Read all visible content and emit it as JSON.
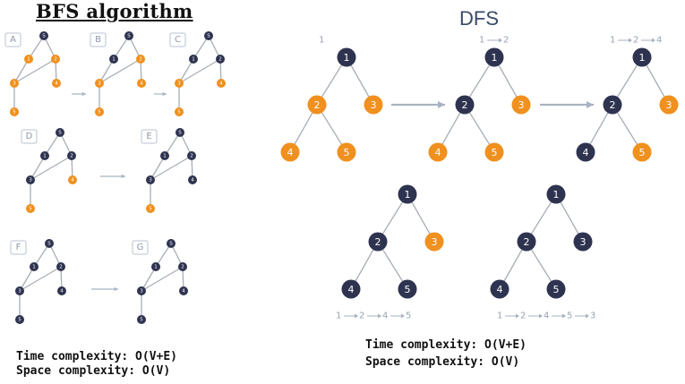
{
  "bfs": {
    "title": "BFS algorithm",
    "time_complexity": "Time complexity: O(V+E)",
    "space_complexity": "Space complexity: O(V)",
    "panels": [
      {
        "label": "A",
        "visited": [],
        "frontier": [
          1,
          2,
          3,
          4,
          5
        ]
      },
      {
        "label": "B",
        "visited": [
          1
        ],
        "frontier": [
          2,
          3,
          4,
          5
        ]
      },
      {
        "label": "C",
        "visited": [
          1,
          2
        ],
        "frontier": [
          3,
          4,
          5
        ]
      },
      {
        "label": "D",
        "visited": [
          1,
          2,
          3
        ],
        "frontier": [
          4,
          5
        ]
      },
      {
        "label": "E",
        "visited": [
          1,
          2,
          3,
          4
        ],
        "frontier": [
          5
        ]
      },
      {
        "label": "F",
        "visited": [
          1,
          2,
          3,
          4,
          5
        ],
        "frontier": []
      },
      {
        "label": "G",
        "visited": [
          1,
          2,
          3,
          4,
          5
        ],
        "frontier": []
      }
    ]
  },
  "dfs": {
    "title": "DFS",
    "time_complexity": "Time complexity: O(V+E)",
    "space_complexity": "Space complexity: O(V)",
    "steps": [
      {
        "order": [
          "1"
        ],
        "visited": [
          1
        ],
        "frontier": [
          2,
          3,
          4,
          5
        ]
      },
      {
        "order": [
          "1",
          "2"
        ],
        "visited": [
          1,
          2
        ],
        "frontier": [
          3,
          4,
          5
        ]
      },
      {
        "order": [
          "1",
          "2",
          "4"
        ],
        "visited": [
          1,
          2,
          4
        ],
        "frontier": [
          3,
          5
        ]
      },
      {
        "order": [
          "1",
          "2",
          "4",
          "5"
        ],
        "visited": [
          1,
          2,
          4,
          5
        ],
        "frontier": [
          3
        ]
      },
      {
        "order": [
          "1",
          "2",
          "4",
          "5",
          "3"
        ],
        "visited": [
          1,
          2,
          3,
          4,
          5
        ],
        "frontier": []
      }
    ]
  },
  "colors": {
    "visited": "#2e3350",
    "frontier": "#f0901e",
    "edge": "#a8aeb6",
    "arrow": "#a9b3c2",
    "label_box": "#b9c2d0",
    "node_text": "#ffffff"
  }
}
